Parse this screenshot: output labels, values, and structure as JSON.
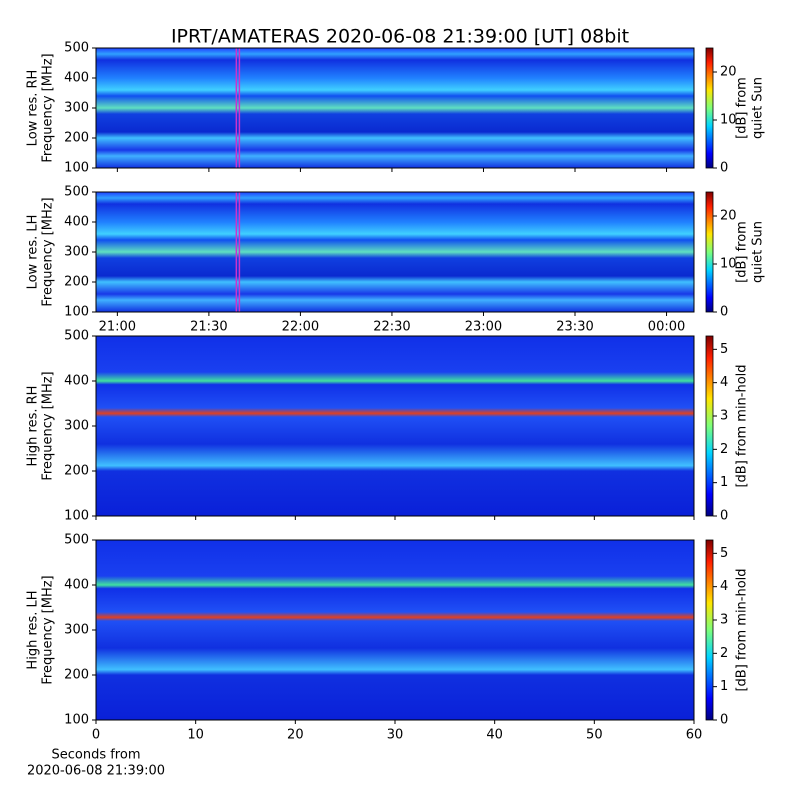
{
  "chart_data": {
    "type": "heatmap",
    "title": "IPRT/AMATERAS 2020-06-08 21:39:00 [UT]   08bit",
    "colormap": "jet",
    "panels": [
      {
        "ylabel": [
          "Low res. RH",
          "Frequency [MHz]"
        ],
        "ylim": [
          100,
          500
        ],
        "yticks": [
          100,
          200,
          300,
          400,
          500
        ],
        "xlim": [
          "20:53",
          "00:09"
        ],
        "xticks": [
          "21:00",
          "21:30",
          "22:00",
          "22:30",
          "23:00",
          "23:30",
          "00:00"
        ],
        "show_xticks": false,
        "markers": [
          "21:39",
          "21:40"
        ],
        "marker_color": "#cc33cc",
        "clabel": [
          "[dB] from",
          "quiet Sun"
        ],
        "clim": [
          0,
          25
        ],
        "cticks": [
          0,
          10,
          20
        ]
      },
      {
        "ylabel": [
          "Low res. LH",
          "Frequency [MHz]"
        ],
        "ylim": [
          100,
          500
        ],
        "yticks": [
          100,
          200,
          300,
          400,
          500
        ],
        "xlim": [
          "20:53",
          "00:09"
        ],
        "xticks": [
          "21:00",
          "21:30",
          "22:00",
          "22:30",
          "23:00",
          "23:30",
          "00:00"
        ],
        "show_xticks": true,
        "markers": [
          "21:39",
          "21:40"
        ],
        "marker_color": "#cc33cc",
        "clabel": [
          "[dB] from",
          "quiet Sun"
        ],
        "clim": [
          0,
          25
        ],
        "cticks": [
          0,
          10,
          20
        ]
      },
      {
        "ylabel": [
          "High res. RH",
          "Frequency [MHz]"
        ],
        "ylim": [
          100,
          500
        ],
        "yticks": [
          100,
          200,
          300,
          400,
          500
        ],
        "xlim": [
          0,
          60
        ],
        "xticks": [
          0,
          10,
          20,
          30,
          40,
          50,
          60
        ],
        "show_xticks": false,
        "clabel": [
          "[dB] from min-hold"
        ],
        "clim": [
          0,
          5.4
        ],
        "cticks": [
          0,
          1,
          2,
          3,
          4,
          5
        ]
      },
      {
        "ylabel": [
          "High res. LH",
          "Frequency [MHz]"
        ],
        "ylim": [
          100,
          500
        ],
        "yticks": [
          100,
          200,
          300,
          400,
          500
        ],
        "xlim": [
          0,
          60
        ],
        "xticks": [
          0,
          10,
          20,
          30,
          40,
          50,
          60
        ],
        "show_xticks": true,
        "xlabel": [
          "Seconds from",
          "2020-06-08 21:39:00"
        ],
        "clabel": [
          "[dB] from min-hold"
        ],
        "clim": [
          0,
          5.4
        ],
        "cticks": [
          0,
          1,
          2,
          3,
          4,
          5
        ]
      }
    ]
  }
}
